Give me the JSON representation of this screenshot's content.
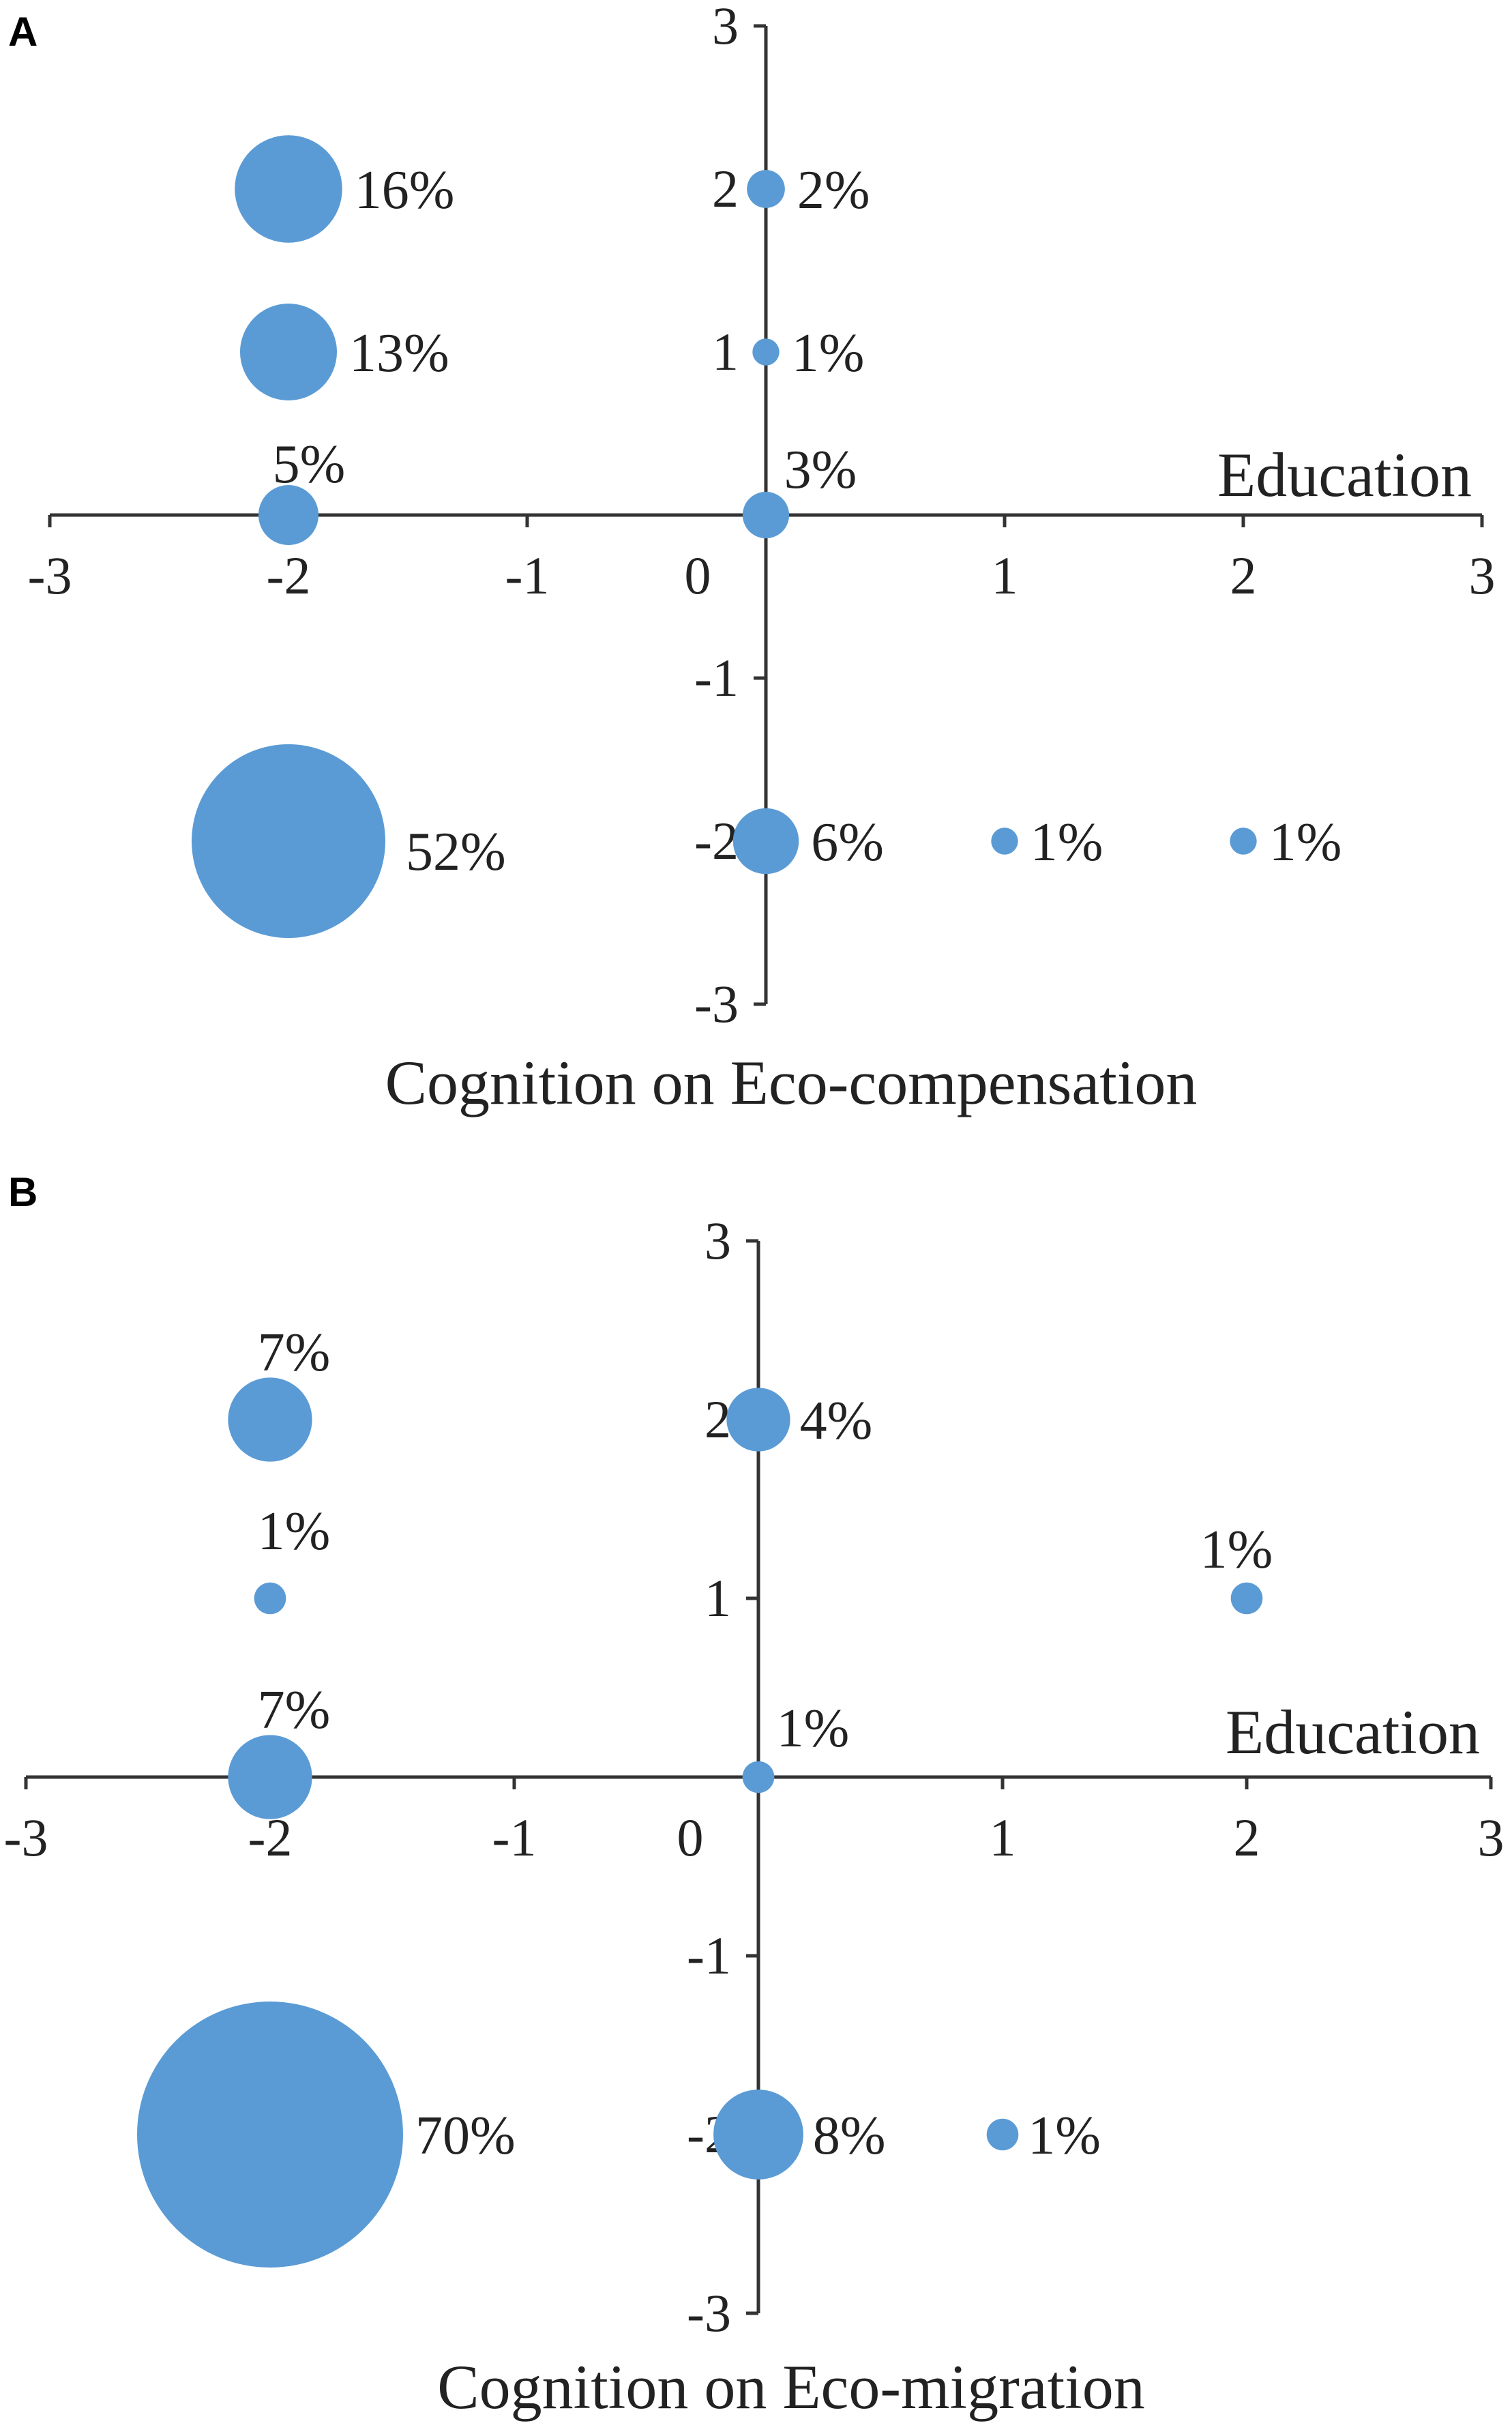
{
  "colors": {
    "bubble": "#5b9bd5",
    "axis": "#333333",
    "text": "#222222"
  },
  "chart_data": [
    {
      "panel": "A",
      "type": "scatter",
      "xlabel": "Education",
      "ylabel": "Cognition on Eco-compensation",
      "xlim": [
        -3,
        3
      ],
      "ylim": [
        -3,
        3
      ],
      "x_ticks": [
        "-3",
        "-2",
        "-1",
        "0",
        "1",
        "2",
        "3"
      ],
      "y_ticks": [
        "3",
        "2",
        "1",
        "-1",
        "-2",
        "-3"
      ],
      "points": [
        {
          "x": -2,
          "y": 2,
          "value": 16,
          "label": "16%"
        },
        {
          "x": -2,
          "y": 1,
          "value": 13,
          "label": "13%"
        },
        {
          "x": -2,
          "y": 0,
          "value": 5,
          "label": "5%"
        },
        {
          "x": -2,
          "y": -2,
          "value": 52,
          "label": "52%"
        },
        {
          "x": 0,
          "y": 2,
          "value": 2,
          "label": "2%"
        },
        {
          "x": 0,
          "y": 1,
          "value": 1,
          "label": "1%"
        },
        {
          "x": 0,
          "y": 0,
          "value": 3,
          "label": "3%"
        },
        {
          "x": 0,
          "y": -2,
          "value": 6,
          "label": "6%"
        },
        {
          "x": 1,
          "y": -2,
          "value": 1,
          "label": "1%"
        },
        {
          "x": 2,
          "y": -2,
          "value": 1,
          "label": "1%"
        }
      ]
    },
    {
      "panel": "B",
      "type": "scatter",
      "xlabel": "Education",
      "ylabel": "Cognition on Eco-migration",
      "xlim": [
        -3,
        3
      ],
      "ylim": [
        -3,
        3
      ],
      "x_ticks": [
        "-3",
        "-2",
        "-1",
        "0",
        "1",
        "2",
        "3"
      ],
      "y_ticks": [
        "3",
        "2",
        "1",
        "-1",
        "-2",
        "-3"
      ],
      "points": [
        {
          "x": -2,
          "y": 2,
          "value": 7,
          "label": "7%"
        },
        {
          "x": -2,
          "y": 1,
          "value": 1,
          "label": "1%"
        },
        {
          "x": -2,
          "y": 0,
          "value": 7,
          "label": "7%"
        },
        {
          "x": -2,
          "y": -2,
          "value": 70,
          "label": "70%"
        },
        {
          "x": 0,
          "y": 2,
          "value": 4,
          "label": "4%"
        },
        {
          "x": 0,
          "y": 0,
          "value": 1,
          "label": "1%"
        },
        {
          "x": 0,
          "y": -2,
          "value": 8,
          "label": "8%"
        },
        {
          "x": 1,
          "y": -2,
          "value": 1,
          "label": "1%"
        },
        {
          "x": 2,
          "y": 1,
          "value": 1,
          "label": "1%"
        }
      ]
    }
  ]
}
